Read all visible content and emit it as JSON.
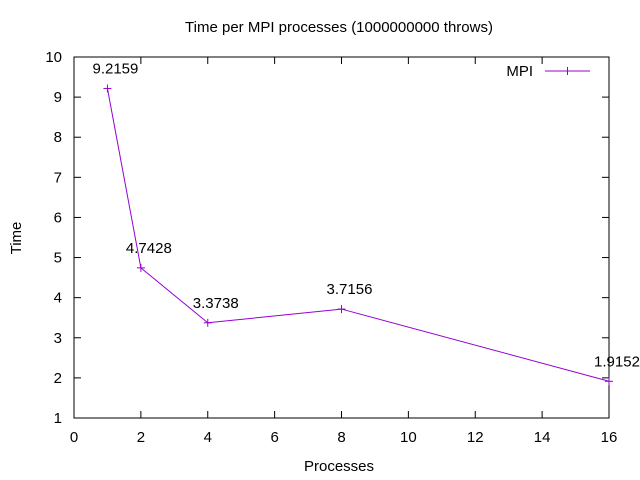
{
  "chart_data": {
    "type": "line",
    "title": "Time per MPI processes (1000000000 throws)",
    "xlabel": "Processes",
    "ylabel": "Time",
    "xlim": [
      0,
      16
    ],
    "ylim": [
      1,
      10
    ],
    "xticks": [
      0,
      2,
      4,
      6,
      8,
      10,
      12,
      14,
      16
    ],
    "yticks": [
      1,
      2,
      3,
      4,
      5,
      6,
      7,
      8,
      9,
      10
    ],
    "grid": false,
    "legend_position": "top-right",
    "series": [
      {
        "name": "MPI",
        "color": "#9400d3",
        "marker": "plus",
        "x": [
          1,
          2,
          4,
          8,
          16
        ],
        "y": [
          9.2159,
          4.7428,
          3.3738,
          3.7156,
          1.9152
        ],
        "labels": [
          "9.2159",
          "4.7428",
          "3.3738",
          "3.7156",
          "1.9152"
        ]
      }
    ]
  }
}
